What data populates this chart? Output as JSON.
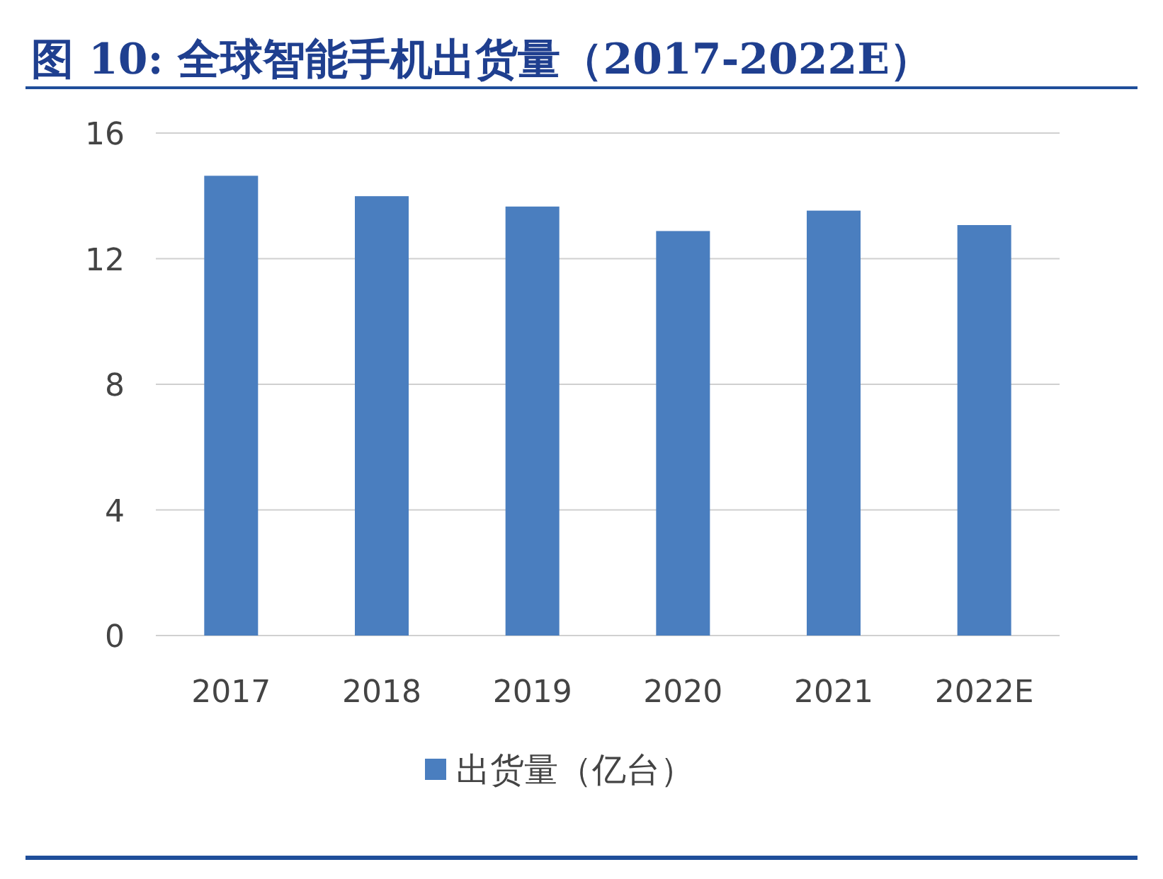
{
  "chart_data": {
    "type": "bar",
    "title": "图 10: 全球智能手机出货量（2017-2022E）",
    "categories": [
      "2017",
      "2018",
      "2019",
      "2020",
      "2021",
      "2022E"
    ],
    "series": [
      {
        "name": "出货量（亿台）",
        "color": "#4a7ebf",
        "values": [
          14.64,
          13.99,
          13.66,
          12.88,
          13.53,
          13.07
        ]
      }
    ],
    "ylim": [
      0,
      16
    ],
    "yticks": [
      0,
      4,
      8,
      12,
      16
    ],
    "grid": "y",
    "legend": "bottom"
  }
}
